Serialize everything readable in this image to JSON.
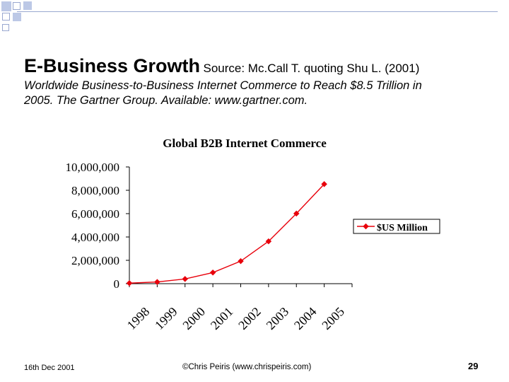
{
  "slide": {
    "title": "E-Business Growth",
    "source": "Source: Mc.Call T. quoting Shu L. (2001)",
    "subtitle_line1": "Worldwide Business-to-Business Internet Commerce to Reach $8.5 Trillion in",
    "subtitle_line2": "2005.  The Gartner Group.  Available: www.gartner.com."
  },
  "chart_data": {
    "type": "line",
    "title": "Global B2B Internet Commerce",
    "categories": [
      "1998",
      "1999",
      "2000",
      "2001",
      "2002",
      "2003",
      "2004",
      "2005"
    ],
    "series": [
      {
        "name": "$US Million",
        "values": [
          45000,
          145000,
          403000,
          953000,
          1930000,
          3630000,
          6010000,
          8530000
        ],
        "color": "#e8000b"
      }
    ],
    "ylim": [
      0,
      10000000
    ],
    "yticks": [
      "0",
      "2,000,000",
      "4,000,000",
      "6,000,000",
      "8,000,000",
      "10,000,000"
    ],
    "grid": false,
    "legend": "right",
    "xlabel": "",
    "ylabel": ""
  },
  "footer": {
    "date": "16th Dec 2001",
    "copyright": "©Chris Peiris  (www.chrispeiris.com)",
    "page_number": "29"
  }
}
